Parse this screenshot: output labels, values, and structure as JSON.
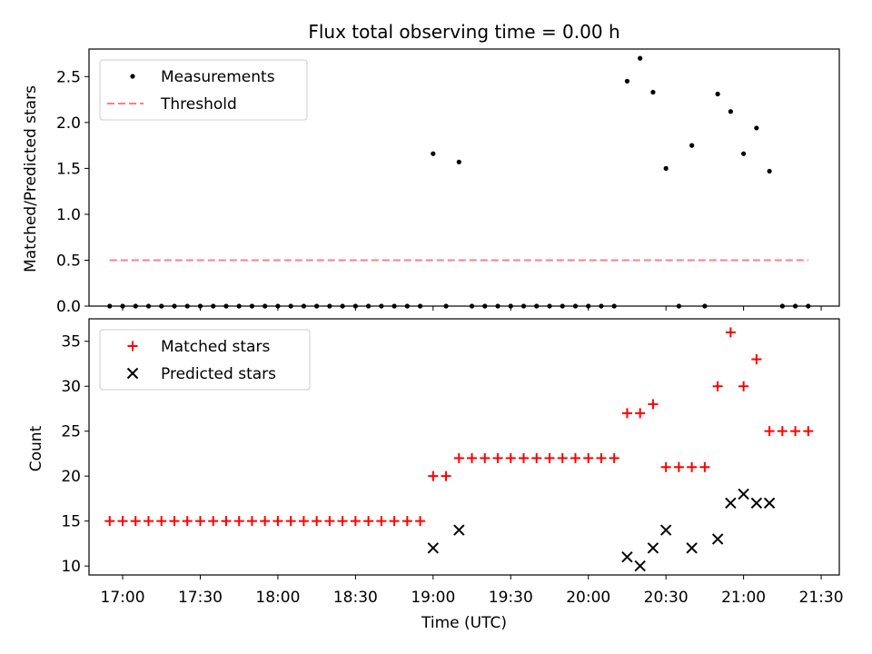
{
  "chart_data": [
    {
      "type": "scatter",
      "title": "Flux total observing time = 0.00 h",
      "xlabel": "",
      "ylabel": "Matched/Predicted stars",
      "xlim": [
        "16:47",
        "21:37"
      ],
      "ylim": [
        0,
        2.8
      ],
      "yticks": [
        0.0,
        0.5,
        1.0,
        1.5,
        2.0,
        2.5
      ],
      "ytick_labels": [
        "0.0",
        "0.5",
        "1.0",
        "1.5",
        "2.0",
        "2.5"
      ],
      "xticks": [
        "17:00",
        "17:30",
        "18:00",
        "18:30",
        "19:00",
        "19:30",
        "20:00",
        "20:30",
        "21:00",
        "21:30"
      ],
      "legend_position": "top-left",
      "series": [
        {
          "name": "Measurements",
          "marker": "dot",
          "color": "#000000",
          "x": [
            "16:55",
            "17:00",
            "17:05",
            "17:10",
            "17:15",
            "17:20",
            "17:25",
            "17:30",
            "17:35",
            "17:40",
            "17:45",
            "17:50",
            "17:55",
            "18:00",
            "18:05",
            "18:10",
            "18:15",
            "18:20",
            "18:25",
            "18:30",
            "18:35",
            "18:40",
            "18:45",
            "18:50",
            "18:55",
            "19:00",
            "19:05",
            "19:10",
            "19:15",
            "19:20",
            "19:25",
            "19:30",
            "19:35",
            "19:40",
            "19:45",
            "19:50",
            "19:55",
            "20:00",
            "20:05",
            "20:10",
            "20:15",
            "20:20",
            "20:25",
            "20:30",
            "20:35",
            "20:40",
            "20:45",
            "20:50",
            "20:55",
            "21:00",
            "21:05",
            "21:10",
            "21:15",
            "21:20",
            "21:25"
          ],
          "values": [
            0,
            0,
            0,
            0,
            0,
            0,
            0,
            0,
            0,
            0,
            0,
            0,
            0,
            0,
            0,
            0,
            0,
            0,
            0,
            0,
            0,
            0,
            0,
            0,
            0,
            1.66,
            0,
            1.57,
            0,
            0,
            0,
            0,
            0,
            0,
            0,
            0,
            0,
            0,
            0,
            0,
            2.45,
            2.7,
            2.33,
            1.5,
            0,
            1.75,
            0,
            2.31,
            2.12,
            1.66,
            1.94,
            1.47,
            0,
            0,
            0
          ]
        },
        {
          "name": "Threshold",
          "style": "dashed",
          "color": "#ff7f7f",
          "x": [
            "16:55",
            "21:25"
          ],
          "values": [
            0.5,
            0.5
          ]
        }
      ]
    },
    {
      "type": "scatter",
      "title": "",
      "xlabel": "Time (UTC)",
      "ylabel": "Count",
      "xlim": [
        "16:47",
        "21:37"
      ],
      "ylim": [
        9,
        37.5
      ],
      "yticks": [
        10,
        15,
        20,
        25,
        30,
        35
      ],
      "ytick_labels": [
        "10",
        "15",
        "20",
        "25",
        "30",
        "35"
      ],
      "xticks": [
        "17:00",
        "17:30",
        "18:00",
        "18:30",
        "19:00",
        "19:30",
        "20:00",
        "20:30",
        "21:00",
        "21:30"
      ],
      "legend_position": "top-left",
      "series": [
        {
          "name": "Matched stars",
          "marker": "plus",
          "color": "#ff0000",
          "x": [
            "16:55",
            "17:00",
            "17:05",
            "17:10",
            "17:15",
            "17:20",
            "17:25",
            "17:30",
            "17:35",
            "17:40",
            "17:45",
            "17:50",
            "17:55",
            "18:00",
            "18:05",
            "18:10",
            "18:15",
            "18:20",
            "18:25",
            "18:30",
            "18:35",
            "18:40",
            "18:45",
            "18:50",
            "18:55",
            "19:00",
            "19:05",
            "19:10",
            "19:15",
            "19:20",
            "19:25",
            "19:30",
            "19:35",
            "19:40",
            "19:45",
            "19:50",
            "19:55",
            "20:00",
            "20:05",
            "20:10",
            "20:15",
            "20:20",
            "20:25",
            "20:30",
            "20:35",
            "20:40",
            "20:45",
            "20:50",
            "20:55",
            "21:00",
            "21:05",
            "21:10",
            "21:15",
            "21:20",
            "21:25"
          ],
          "values": [
            15,
            15,
            15,
            15,
            15,
            15,
            15,
            15,
            15,
            15,
            15,
            15,
            15,
            15,
            15,
            15,
            15,
            15,
            15,
            15,
            15,
            15,
            15,
            15,
            15,
            20,
            20,
            22,
            22,
            22,
            22,
            22,
            22,
            22,
            22,
            22,
            22,
            22,
            22,
            22,
            27,
            27,
            28,
            21,
            21,
            21,
            21,
            30,
            36,
            30,
            33,
            25,
            25,
            25,
            25
          ]
        },
        {
          "name": "Predicted stars",
          "marker": "x",
          "color": "#000000",
          "x": [
            "19:00",
            "19:10",
            "20:15",
            "20:20",
            "20:25",
            "20:30",
            "20:40",
            "20:50",
            "20:55",
            "21:00",
            "21:05",
            "21:10"
          ],
          "values": [
            12,
            14,
            11,
            10,
            12,
            14,
            12,
            13,
            17,
            18,
            17,
            17
          ]
        }
      ]
    }
  ]
}
